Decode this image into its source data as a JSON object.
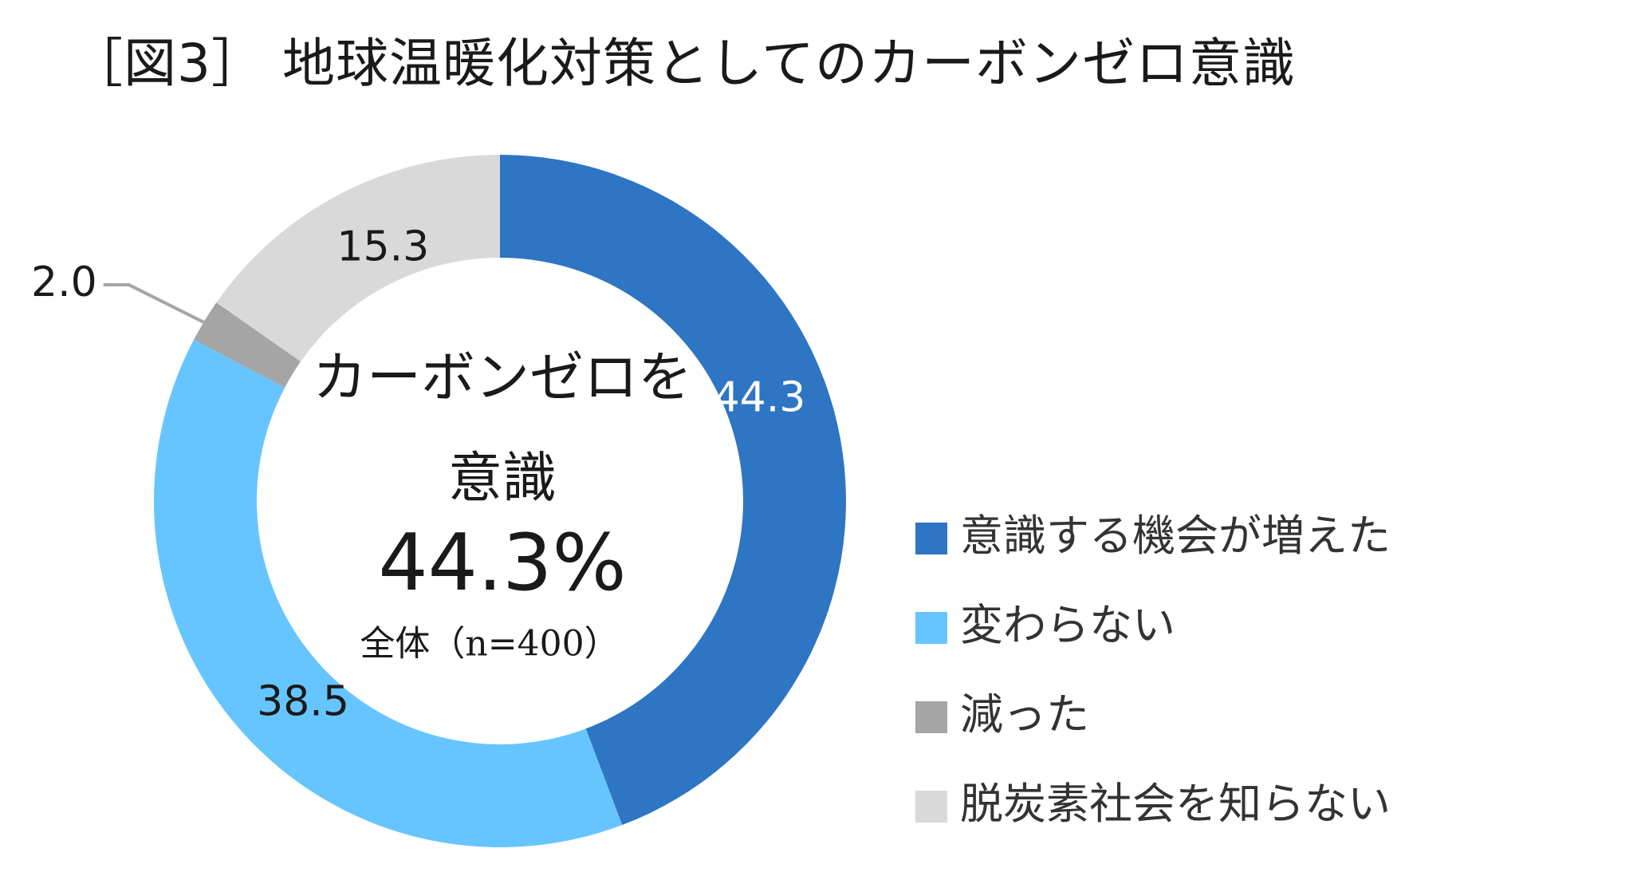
{
  "chart_data": {
    "type": "pie",
    "title": "［図3］ 地球温暖化対策としてのカーボンゼロ意識",
    "categories": [
      "意識する機会が増えた",
      "変わらない",
      "減った",
      "脱炭素社会を知らない"
    ],
    "values": [
      44.3,
      38.5,
      2.0,
      15.3
    ],
    "data_labels": [
      "44.3",
      "38.5",
      "2.0",
      "15.3"
    ],
    "colors": [
      "#2E75C4",
      "#66C5FF",
      "#A5A5A5",
      "#D9D9D9"
    ],
    "label_colors": [
      "#ffffff",
      "#1a1a1a",
      "#1a1a1a",
      "#1a1a1a"
    ],
    "legend_position": "right",
    "center": {
      "line1": "カーボンゼロを",
      "line2": "意識",
      "value": "44.3%",
      "note": "全体（n=400）"
    }
  }
}
